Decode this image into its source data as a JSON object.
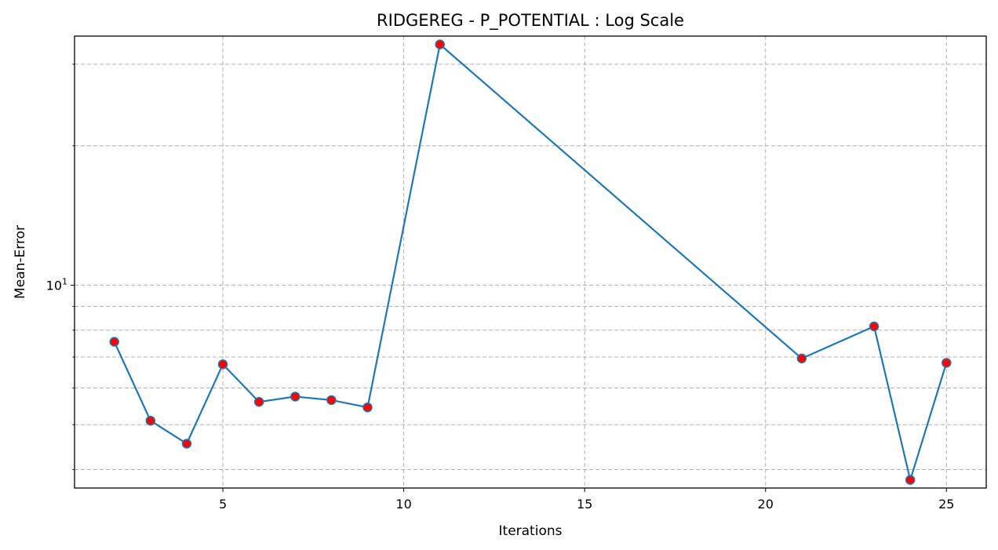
{
  "chart_data": {
    "type": "line",
    "title": "RIDGEREG - P_POTENTIAL : Log Scale",
    "xlabel": "Iterations",
    "ylabel": "Mean-Error",
    "x_ticks": [
      5,
      10,
      15,
      20,
      25
    ],
    "y_ticks": [
      {
        "value": 10,
        "base": "10",
        "exponent": "1"
      }
    ],
    "y_scale": "log",
    "xlim": [
      0.9,
      26.1
    ],
    "ylim": [
      3.65,
      34.5
    ],
    "grid": true,
    "series": [
      {
        "x": [
          2,
          3,
          4,
          5,
          6,
          7,
          8,
          9,
          11,
          21,
          23,
          24,
          25
        ],
        "y": [
          7.55,
          5.1,
          4.55,
          6.75,
          5.6,
          5.75,
          5.65,
          5.45,
          33.1,
          6.95,
          8.15,
          3.8,
          6.8
        ],
        "line_color": "#1f77b4",
        "marker_color": "#ff0000"
      }
    ]
  }
}
